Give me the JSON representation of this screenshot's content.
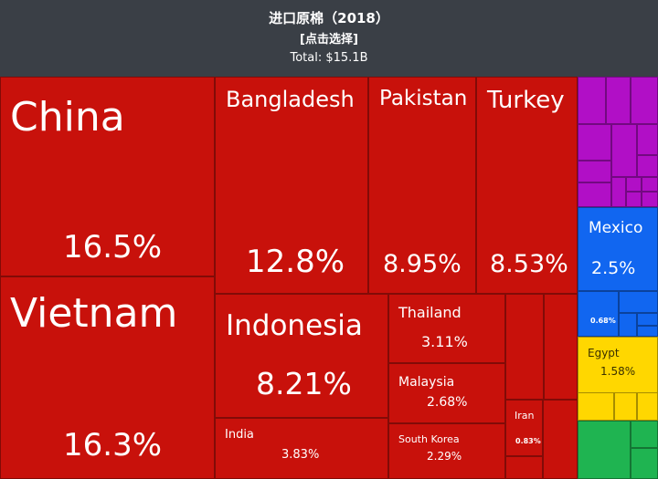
{
  "header": {
    "title": "进口原棉（2018）",
    "subtitle": "[点击选择]",
    "total": "Total: $15.1B"
  },
  "colors": {
    "asia": "#c8110b",
    "purple": "#b10fc6",
    "blue": "#1166f0",
    "yellow": "#ffd700",
    "green": "#1fb451",
    "background": "#3a3f46"
  },
  "chart_data": {
    "type": "treemap",
    "title": "进口原棉（2018）",
    "total": "$15.1B",
    "items": [
      {
        "name": "China",
        "label": "16.5%",
        "value": 16.5,
        "color": "asia"
      },
      {
        "name": "Vietnam",
        "label": "16.3%",
        "value": 16.3,
        "color": "asia"
      },
      {
        "name": "Bangladesh",
        "label": "12.8%",
        "value": 12.8,
        "color": "asia"
      },
      {
        "name": "Pakistan",
        "label": "8.95%",
        "value": 8.95,
        "color": "asia"
      },
      {
        "name": "Turkey",
        "label": "8.53%",
        "value": 8.53,
        "color": "asia"
      },
      {
        "name": "Indonesia",
        "label": "8.21%",
        "value": 8.21,
        "color": "asia"
      },
      {
        "name": "India",
        "label": "3.83%",
        "value": 3.83,
        "color": "asia"
      },
      {
        "name": "Thailand",
        "label": "3.11%",
        "value": 3.11,
        "color": "asia"
      },
      {
        "name": "Malaysia",
        "label": "2.68%",
        "value": 2.68,
        "color": "asia"
      },
      {
        "name": "South Korea",
        "label": "2.29%",
        "value": 2.29,
        "color": "asia"
      },
      {
        "name": "Iran",
        "label": "0.83%",
        "value": 0.83,
        "color": "asia"
      },
      {
        "name": "Mexico",
        "label": "2.5%",
        "value": 2.5,
        "color": "blue"
      },
      {
        "name": "",
        "label": "0.68%",
        "value": 0.68,
        "color": "blue"
      },
      {
        "name": "Egypt",
        "label": "1.58%",
        "value": 1.58,
        "color": "yellow"
      }
    ]
  }
}
